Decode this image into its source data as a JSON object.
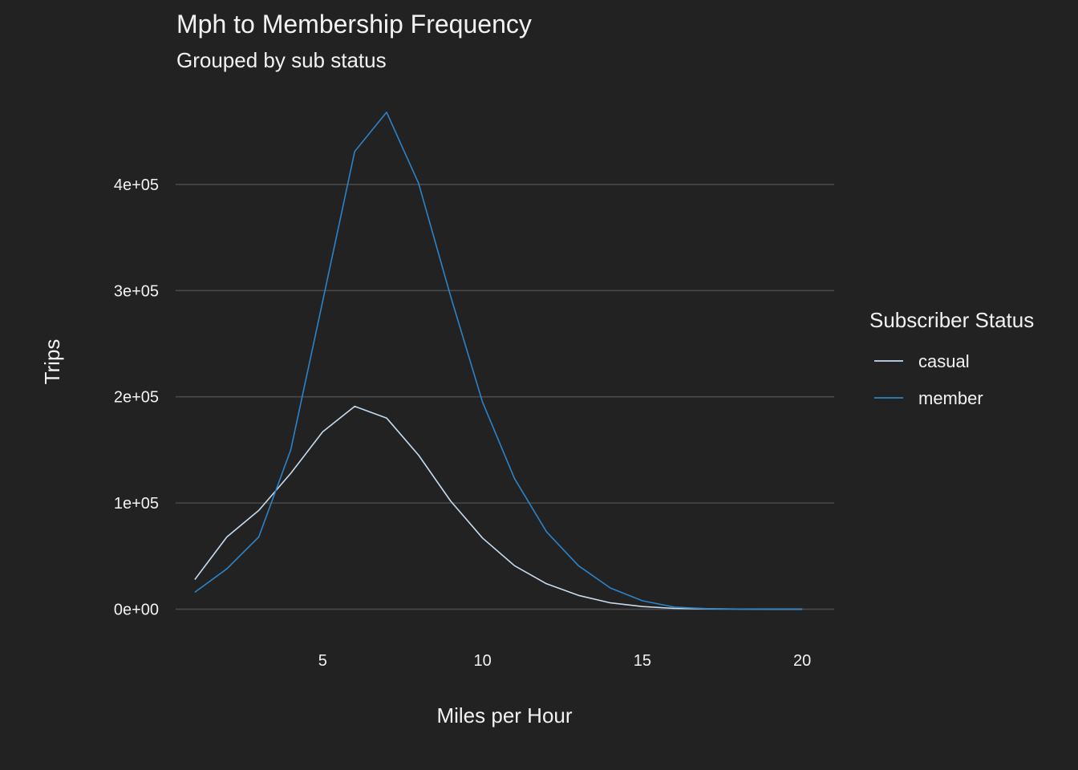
{
  "chart_data": {
    "type": "line",
    "title": "Mph to Membership Frequency",
    "subtitle": "Grouped by sub status",
    "xlabel": "Miles per Hour",
    "ylabel": "Trips",
    "x_ticks": [
      5,
      10,
      15,
      20
    ],
    "y_ticks": [
      {
        "value": 0,
        "label": "0e+00"
      },
      {
        "value": 100000,
        "label": "1e+05"
      },
      {
        "value": 200000,
        "label": "2e+05"
      },
      {
        "value": 300000,
        "label": "3e+05"
      },
      {
        "value": 400000,
        "label": "4e+05"
      }
    ],
    "xlim": [
      0.4,
      21
    ],
    "ylim": [
      -23000,
      483000
    ],
    "grid": "horizontal-major",
    "legend": {
      "title": "Subscriber Status",
      "position": "right"
    },
    "series": [
      {
        "name": "casual",
        "color": "#c6dbef",
        "x": [
          1,
          2,
          3,
          4,
          5,
          6,
          7,
          8,
          9,
          10,
          11,
          12,
          13,
          14,
          15,
          16,
          17,
          18,
          19,
          20
        ],
        "values": [
          28000,
          68000,
          93000,
          128000,
          167000,
          191000,
          180000,
          145000,
          102000,
          67000,
          41000,
          24000,
          13000,
          6000,
          2500,
          800,
          300,
          150,
          80,
          50
        ]
      },
      {
        "name": "member",
        "color": "#2b83c9",
        "x": [
          1,
          2,
          3,
          4,
          5,
          6,
          7,
          8,
          9,
          10,
          11,
          12,
          13,
          14,
          15,
          16,
          17,
          18,
          19,
          20
        ],
        "values": [
          16000,
          38000,
          68000,
          150000,
          290000,
          431000,
          468000,
          401000,
          295000,
          195000,
          123000,
          73000,
          41000,
          20000,
          8000,
          2000,
          600,
          200,
          100,
          60
        ]
      }
    ]
  }
}
